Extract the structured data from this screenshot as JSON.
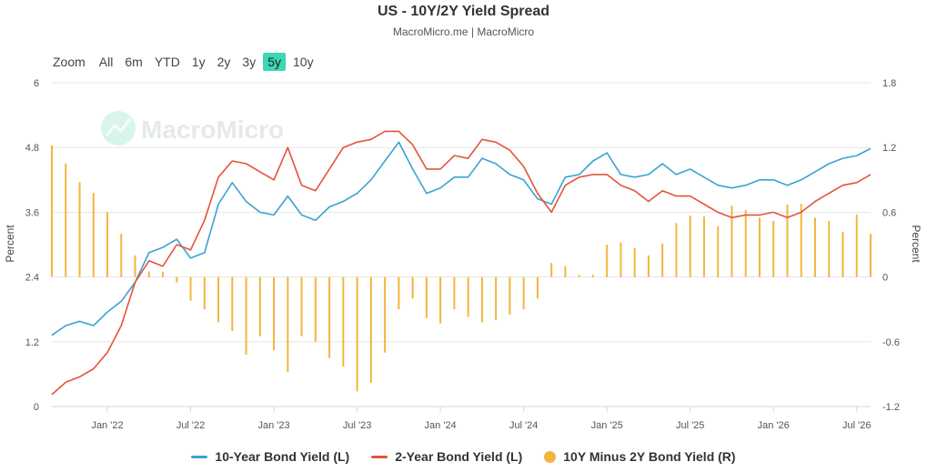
{
  "header": {
    "title": "US - 10Y/2Y Yield Spread",
    "subtitle": "MacroMicro.me | MacroMicro"
  },
  "range_selector": {
    "zoom_label": "Zoom",
    "buttons": [
      "All",
      "6m",
      "YTD",
      "1y",
      "2y",
      "3y",
      "5y",
      "10y"
    ],
    "active": "5y"
  },
  "watermark": "MacroMicro",
  "colors": {
    "ten_year": "#3aa3d0",
    "two_year": "#e4543a",
    "spread": "#f2b63c",
    "selected": "#3dd6b4"
  },
  "chart_data": {
    "type": "line",
    "title": "US - 10Y/2Y Yield Spread",
    "xlabel": "",
    "ylabel_left": "Percent",
    "ylabel_right": "Percent",
    "x_range": [
      "2021-09",
      "2026-08"
    ],
    "ylim_left": [
      0,
      6
    ],
    "ylim_right": [
      -1.2,
      1.8
    ],
    "left_ticks": [
      "0",
      "1.2",
      "2.4",
      "3.6",
      "4.8",
      "6"
    ],
    "right_ticks": [
      "-1.2",
      "-0.6",
      "0",
      "0.6",
      "1.2",
      "1.8"
    ],
    "x_ticks": [
      "Jan '22",
      "Jul '22",
      "Jan '23",
      "Jul '23",
      "Jan '24",
      "Jul '24",
      "Jan '25",
      "Jul '25",
      "Jan '26",
      "Jul '26"
    ],
    "grid": true,
    "legend_position": "bottom",
    "series": [
      {
        "name": "10-Year Bond Yield (L)",
        "axis": "left",
        "style": "line",
        "x": [
          "2021-09",
          "2021-10",
          "2021-11",
          "2021-12",
          "2022-01",
          "2022-02",
          "2022-03",
          "2022-04",
          "2022-05",
          "2022-06",
          "2022-07",
          "2022-08",
          "2022-09",
          "2022-10",
          "2022-11",
          "2022-12",
          "2023-01",
          "2023-02",
          "2023-03",
          "2023-04",
          "2023-05",
          "2023-06",
          "2023-07",
          "2023-08",
          "2023-09",
          "2023-10",
          "2023-11",
          "2023-12",
          "2024-01",
          "2024-02",
          "2024-03",
          "2024-04",
          "2024-05",
          "2024-06",
          "2024-07",
          "2024-08",
          "2024-09",
          "2024-10",
          "2024-11",
          "2024-12",
          "2025-01",
          "2025-02",
          "2025-03",
          "2025-04",
          "2025-05",
          "2025-06",
          "2025-07",
          "2025-08",
          "2025-09",
          "2025-10",
          "2025-11",
          "2025-12",
          "2026-01",
          "2026-02",
          "2026-03",
          "2026-04",
          "2026-05",
          "2026-06",
          "2026-07",
          "2026-08"
        ],
        "values": [
          1.32,
          1.5,
          1.58,
          1.5,
          1.75,
          1.95,
          2.3,
          2.85,
          2.95,
          3.1,
          2.75,
          2.85,
          3.75,
          4.15,
          3.8,
          3.6,
          3.55,
          3.9,
          3.55,
          3.45,
          3.7,
          3.8,
          3.95,
          4.2,
          4.55,
          4.9,
          4.4,
          3.95,
          4.05,
          4.25,
          4.25,
          4.6,
          4.5,
          4.3,
          4.2,
          3.85,
          3.75,
          4.25,
          4.3,
          4.55,
          4.7,
          4.3,
          4.25,
          4.3,
          4.5,
          4.3,
          4.4,
          4.25,
          4.1,
          4.05,
          4.1,
          4.2,
          4.2,
          4.1,
          4.2,
          4.35,
          4.5,
          4.6,
          4.65,
          4.78
        ]
      },
      {
        "name": "2-Year Bond Yield (L)",
        "axis": "left",
        "style": "line",
        "x": [
          "2021-09",
          "2021-10",
          "2021-11",
          "2021-12",
          "2022-01",
          "2022-02",
          "2022-03",
          "2022-04",
          "2022-05",
          "2022-06",
          "2022-07",
          "2022-08",
          "2022-09",
          "2022-10",
          "2022-11",
          "2022-12",
          "2023-01",
          "2023-02",
          "2023-03",
          "2023-04",
          "2023-05",
          "2023-06",
          "2023-07",
          "2023-08",
          "2023-09",
          "2023-10",
          "2023-11",
          "2023-12",
          "2024-01",
          "2024-02",
          "2024-03",
          "2024-04",
          "2024-05",
          "2024-06",
          "2024-07",
          "2024-08",
          "2024-09",
          "2024-10",
          "2024-11",
          "2024-12",
          "2025-01",
          "2025-02",
          "2025-03",
          "2025-04",
          "2025-05",
          "2025-06",
          "2025-07",
          "2025-08",
          "2025-09",
          "2025-10",
          "2025-11",
          "2025-12",
          "2026-01",
          "2026-02",
          "2026-03",
          "2026-04",
          "2026-05",
          "2026-06",
          "2026-07",
          "2026-08"
        ],
        "values": [
          0.22,
          0.45,
          0.55,
          0.7,
          1.0,
          1.5,
          2.3,
          2.7,
          2.6,
          3.0,
          2.9,
          3.45,
          4.25,
          4.55,
          4.5,
          4.35,
          4.2,
          4.8,
          4.1,
          4.0,
          4.4,
          4.8,
          4.9,
          4.95,
          5.1,
          5.1,
          4.85,
          4.4,
          4.4,
          4.65,
          4.6,
          4.95,
          4.9,
          4.75,
          4.45,
          3.95,
          3.6,
          4.1,
          4.25,
          4.3,
          4.3,
          4.1,
          4.0,
          3.8,
          4.0,
          3.9,
          3.9,
          3.75,
          3.6,
          3.5,
          3.55,
          3.55,
          3.6,
          3.5,
          3.6,
          3.8,
          3.95,
          4.1,
          4.15,
          4.3
        ]
      },
      {
        "name": "10Y Minus 2Y Bond Yield (R)",
        "axis": "right",
        "style": "bar",
        "x": [
          "2021-09",
          "2021-10",
          "2021-11",
          "2021-12",
          "2022-01",
          "2022-02",
          "2022-03",
          "2022-04",
          "2022-05",
          "2022-06",
          "2022-07",
          "2022-08",
          "2022-09",
          "2022-10",
          "2022-11",
          "2022-12",
          "2023-01",
          "2023-02",
          "2023-03",
          "2023-04",
          "2023-05",
          "2023-06",
          "2023-07",
          "2023-08",
          "2023-09",
          "2023-10",
          "2023-11",
          "2023-12",
          "2024-01",
          "2024-02",
          "2024-03",
          "2024-04",
          "2024-05",
          "2024-06",
          "2024-07",
          "2024-08",
          "2024-09",
          "2024-10",
          "2024-11",
          "2024-12",
          "2025-01",
          "2025-02",
          "2025-03",
          "2025-04",
          "2025-05",
          "2025-06",
          "2025-07",
          "2025-08",
          "2025-09",
          "2025-10",
          "2025-11",
          "2025-12",
          "2026-01",
          "2026-02",
          "2026-03",
          "2026-04",
          "2026-05",
          "2026-06",
          "2026-07",
          "2026-08"
        ],
        "values": [
          1.22,
          1.05,
          0.88,
          0.78,
          0.6,
          0.4,
          0.2,
          0.05,
          0.05,
          -0.05,
          -0.22,
          -0.3,
          -0.42,
          -0.5,
          -0.72,
          -0.55,
          -0.68,
          -0.88,
          -0.55,
          -0.6,
          -0.75,
          -0.83,
          -1.06,
          -0.98,
          -0.7,
          -0.3,
          -0.2,
          -0.38,
          -0.43,
          -0.3,
          -0.37,
          -0.42,
          -0.4,
          -0.35,
          -0.3,
          -0.2,
          0.13,
          0.1,
          0.02,
          0.02,
          0.3,
          0.32,
          0.27,
          0.2,
          0.31,
          0.5,
          0.57,
          0.56,
          0.47,
          0.66,
          0.62,
          0.55,
          0.52,
          0.67,
          0.68,
          0.55,
          0.52,
          0.42,
          0.58,
          0.4
        ]
      }
    ]
  },
  "legend": {
    "ten_year": "10-Year Bond Yield (L)",
    "two_year": "2-Year Bond Yield (L)",
    "spread": "10Y Minus 2Y Bond Yield (R)"
  }
}
